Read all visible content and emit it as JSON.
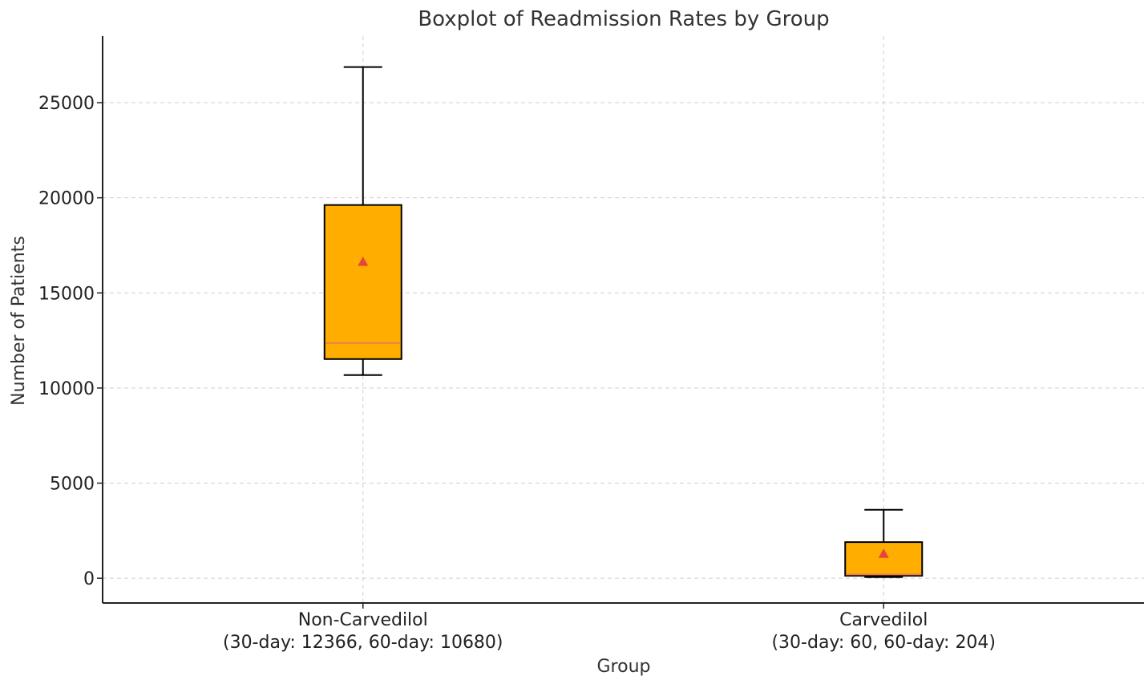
{
  "chart_data": {
    "type": "boxplot",
    "title": "Boxplot of Readmission Rates by Group",
    "xlabel": "Group",
    "ylabel": "Number of Patients",
    "ylim": [
      -1300,
      28500
    ],
    "yticks": [
      0,
      5000,
      10000,
      15000,
      20000,
      25000
    ],
    "ytick_labels": [
      "0",
      "5000",
      "10000",
      "15000",
      "20000",
      "25000"
    ],
    "grid": true,
    "colors": {
      "box_fill": "#FFAE00",
      "box_edge": "#000000",
      "median": "#E8804A",
      "mean_marker": "#E8453A",
      "grid": "#CFCFCF",
      "axis": "#222222"
    },
    "groups": [
      {
        "label_line1": "Non-Carvedilol",
        "label_line2": "(30-day: 12366, 60-day: 10680)",
        "whisker_low": 10680,
        "q1": 11523,
        "median": 12366,
        "q3": 19620,
        "whisker_high": 26874,
        "mean": 16640
      },
      {
        "label_line1": "Carvedilol",
        "label_line2": "(30-day: 60, 60-day: 204)",
        "whisker_low": 60,
        "q1": 132,
        "median": 204,
        "q3": 1900,
        "whisker_high": 3600,
        "mean": 1288
      }
    ]
  }
}
